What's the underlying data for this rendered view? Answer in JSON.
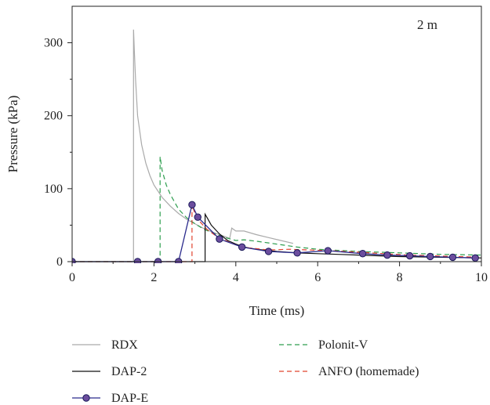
{
  "chart_data": {
    "type": "line",
    "title": "",
    "annotation": "2 m",
    "xlabel": "Time (ms)",
    "ylabel": "Pressure (kPa)",
    "xlim": [
      0,
      10
    ],
    "ylim": [
      0,
      350
    ],
    "xticks": [
      0,
      2,
      4,
      6,
      8,
      10
    ],
    "yticks": [
      0,
      100,
      200,
      300
    ],
    "grid": false,
    "legend_position": "bottom",
    "series": [
      {
        "name": "RDX",
        "color": "#aaaaaa",
        "dash": "solid",
        "marker": "none",
        "x": [
          0,
          1.5,
          1.5,
          1.52,
          1.55,
          1.6,
          1.7,
          1.8,
          1.9,
          2.0,
          2.2,
          2.4,
          2.6,
          2.8,
          3.0,
          3.2,
          3.4,
          3.6,
          3.8,
          3.85,
          3.9,
          4.0,
          4.2,
          4.5,
          4.8,
          5.1,
          5.4
        ],
        "y": [
          0,
          0,
          318,
          290,
          250,
          200,
          160,
          135,
          118,
          105,
          88,
          76,
          66,
          58,
          52,
          46,
          41,
          37,
          33,
          32,
          46,
          42,
          42,
          37,
          33,
          29,
          25
        ]
      },
      {
        "name": "Polonit-V",
        "color": "#2e9e4f",
        "dash": "dashed",
        "marker": "none",
        "x": [
          0,
          2.15,
          2.15,
          2.2,
          2.3,
          2.4,
          2.6,
          2.8,
          3.0,
          3.2,
          3.4,
          3.6,
          3.8,
          4.0,
          4.2,
          4.5,
          5.0,
          5.5,
          6.0,
          7.0,
          8.0,
          9.0,
          10.0
        ],
        "y": [
          0,
          0,
          144,
          125,
          105,
          92,
          72,
          60,
          52,
          45,
          40,
          36,
          32,
          29,
          30,
          28,
          24,
          20,
          17,
          14,
          12,
          10,
          9
        ]
      },
      {
        "name": "DAP-2",
        "color": "#111111",
        "dash": "solid",
        "marker": "none",
        "x": [
          0,
          3.25,
          3.25,
          3.3,
          3.4,
          3.6,
          3.8,
          4.0,
          4.2,
          4.5,
          5.0,
          5.5,
          6.0,
          6.5,
          7.0,
          8.0,
          9.0,
          10.0
        ],
        "y": [
          0,
          0,
          65,
          60,
          50,
          38,
          29,
          24,
          20,
          17,
          14,
          12,
          11,
          10,
          9,
          7,
          6,
          5
        ]
      },
      {
        "name": "ANFO (homemade)",
        "color": "#e0432f",
        "dash": "dashed",
        "marker": "none",
        "x": [
          0,
          2.93,
          2.93,
          3.0,
          3.1,
          3.3,
          3.5,
          3.7,
          4.0,
          4.3,
          4.8,
          5.3,
          5.8,
          6.3,
          7.0,
          7.6,
          8.2,
          8.8,
          9.4,
          10.0
        ],
        "y": [
          0,
          0,
          78,
          66,
          56,
          44,
          36,
          30,
          23,
          19,
          16,
          17,
          16,
          15,
          13,
          11,
          9,
          8,
          7,
          6
        ]
      },
      {
        "name": "DAP-E",
        "color": "#2a2a8c",
        "dash": "solid",
        "marker": "circle",
        "marker_fill": "#6b4d9e",
        "x": [
          0,
          1.6,
          2.1,
          2.6,
          2.93,
          3.07,
          3.6,
          4.15,
          4.8,
          5.5,
          6.25,
          7.1,
          7.7,
          8.25,
          8.75,
          9.3,
          9.85
        ],
        "y": [
          0,
          0,
          0,
          0,
          78,
          61,
          31,
          20,
          14,
          12,
          15,
          11,
          9,
          8,
          7,
          6,
          5
        ]
      }
    ]
  }
}
